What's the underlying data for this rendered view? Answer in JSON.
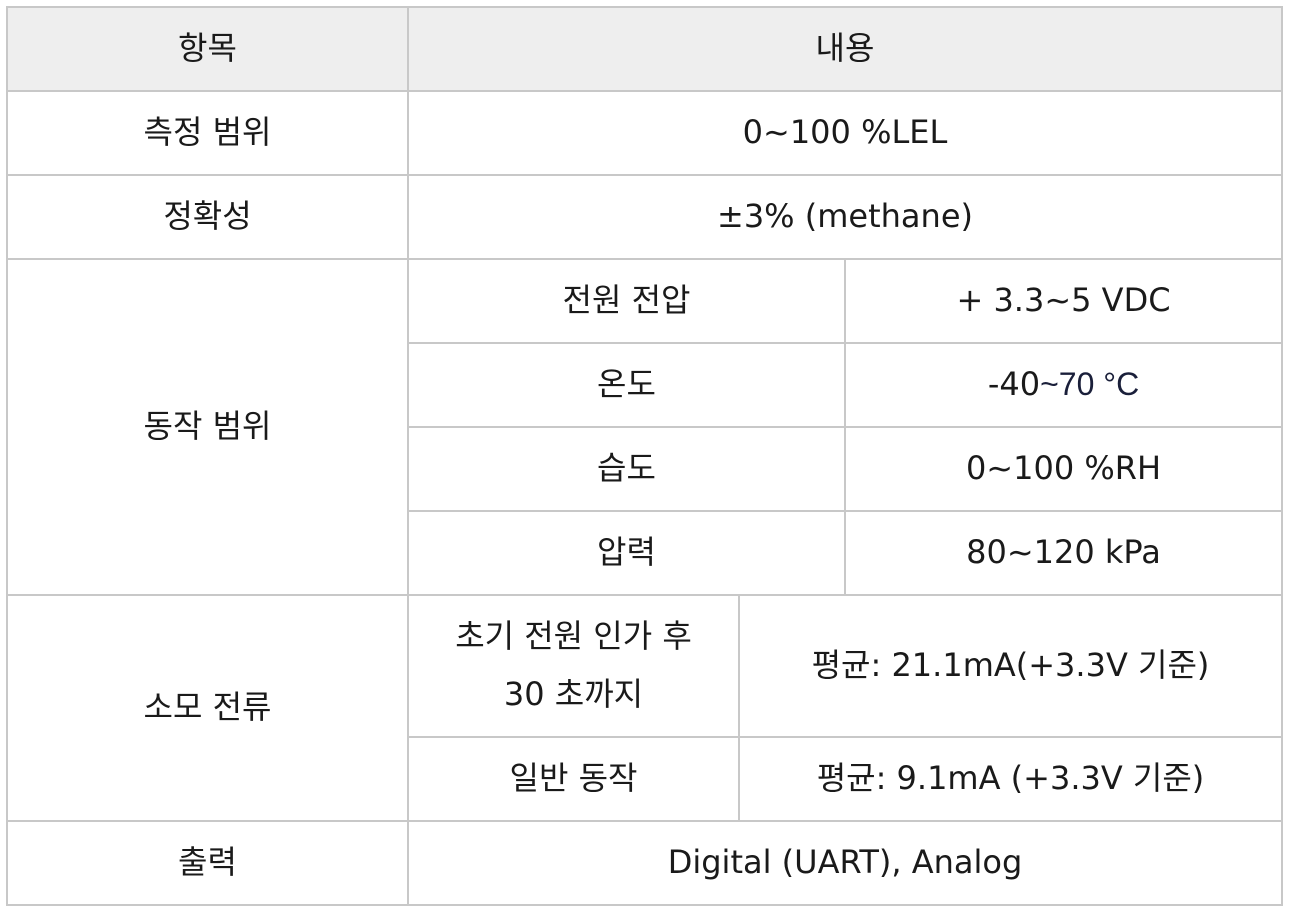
{
  "header": {
    "item": "항목",
    "content": "내용"
  },
  "rows": {
    "measurement_range": {
      "label": "측정 범위",
      "value": "0~100 %LEL"
    },
    "accuracy": {
      "label": "정확성",
      "value": "±3% (methane)"
    },
    "operating_range": {
      "label": "동작 범위",
      "supply_voltage": {
        "label": "전원 전압",
        "value": "+ 3.3~5 VDC"
      },
      "temperature": {
        "label": "온도",
        "value_prefix": "-40",
        "value_suffix": "~70 °C"
      },
      "humidity": {
        "label": "습도",
        "value": "0~100 %RH"
      },
      "pressure": {
        "label": "압력",
        "value": "80~120 kPa"
      }
    },
    "current_consumption": {
      "label": "소모 전류",
      "initial": {
        "label_line1": "초기 전원 인가 후",
        "label_line2": "30 초까지",
        "value": "평균: 21.1mA(+3.3V 기준)"
      },
      "normal": {
        "label": "일반 동작",
        "value": "평균: 9.1mA (+3.3V 기준)"
      }
    },
    "output": {
      "label": "출력",
      "value": "Digital (UART), Analog"
    }
  }
}
